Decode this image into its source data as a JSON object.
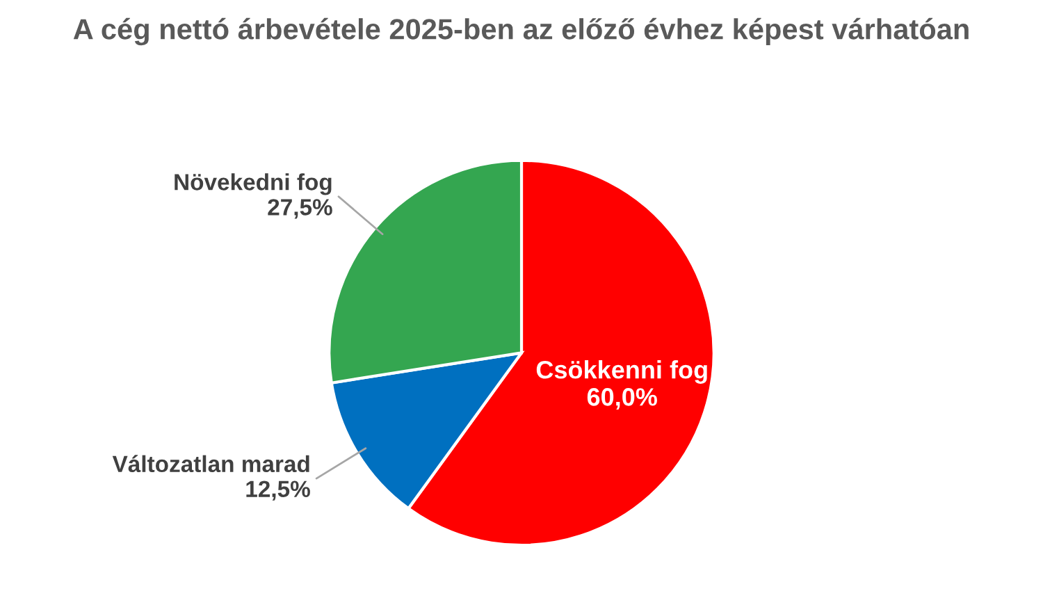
{
  "chart_data": {
    "type": "pie",
    "title": "A cég nettó árbevétele 2025-ben az előző évhez képest várhatóan",
    "categories": [
      "Csökkenni fog",
      "Változatlan marad",
      "Növekedni fog"
    ],
    "values": [
      60.0,
      12.5,
      27.5
    ],
    "colors": [
      "#ff0000",
      "#0070c0",
      "#34a650"
    ],
    "value_labels": [
      "60,0%",
      "12,5%",
      "27,5%"
    ]
  }
}
